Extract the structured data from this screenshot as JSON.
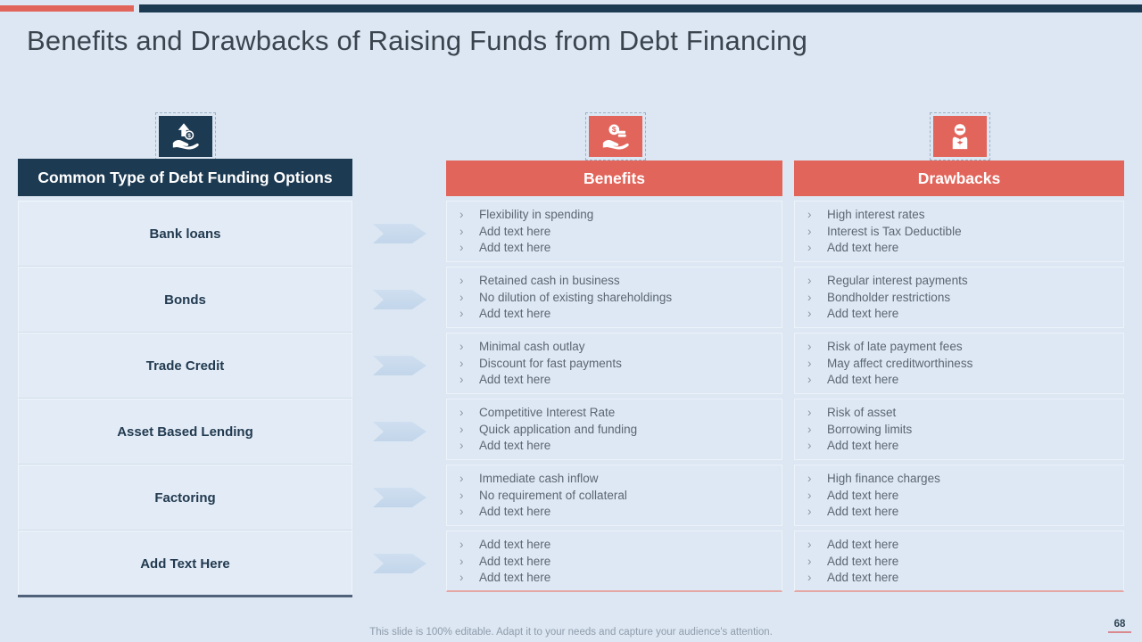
{
  "slide": {
    "title": "Benefits and Drawbacks of Raising Funds from Debt Financing",
    "footer": "This slide is 100% editable. Adapt it to your needs and capture your audience's attention.",
    "page_number": "68",
    "bullet_char": "›"
  },
  "colors": {
    "coral_accent": "#e2655b",
    "navy_accent": "#1c3a52",
    "page_background": "#dce7f3",
    "arrow_blue": "#c8daee",
    "body_text_gray": "#5c6673",
    "pink_underline": "#e5a7a3"
  },
  "icons": [
    {
      "name": "money-growth-hand-icon",
      "column": "funding"
    },
    {
      "name": "cash-in-hand-icon",
      "column": "benefits"
    },
    {
      "name": "restriction-hands-icon",
      "column": "drawbacks"
    }
  ],
  "funding_table": {
    "header": "Common Type of Debt Funding Options",
    "rows": [
      "Bank loans",
      "Bonds",
      "Trade Credit",
      "Asset Based Lending",
      "Factoring",
      "Add Text Here"
    ]
  },
  "benefits": {
    "header": "Benefits",
    "rows": [
      [
        "Flexibility in spending",
        "Add text here",
        "Add text here"
      ],
      [
        "Retained cash in business",
        "No dilution of existing shareholdings",
        "Add text here"
      ],
      [
        "Minimal cash outlay",
        "Discount for fast payments",
        "Add text here"
      ],
      [
        "Competitive Interest Rate",
        "Quick application and funding",
        "Add text here"
      ],
      [
        "Immediate cash inflow",
        "No requirement of collateral",
        "Add text here"
      ],
      [
        "Add text here",
        "Add text here",
        "Add text here"
      ]
    ]
  },
  "drawbacks": {
    "header": "Drawbacks",
    "rows": [
      [
        "High interest rates",
        "Interest is Tax Deductible",
        "Add text here"
      ],
      [
        "Regular interest payments",
        "Bondholder restrictions",
        "Add text here"
      ],
      [
        "Risk of late payment fees",
        "May affect creditworthiness",
        "Add text here"
      ],
      [
        "Risk of asset",
        "Borrowing limits",
        "Add text here"
      ],
      [
        "High finance charges",
        "Add text here",
        "Add text here"
      ],
      [
        "Add text here",
        "Add text here",
        "Add text here"
      ]
    ]
  }
}
